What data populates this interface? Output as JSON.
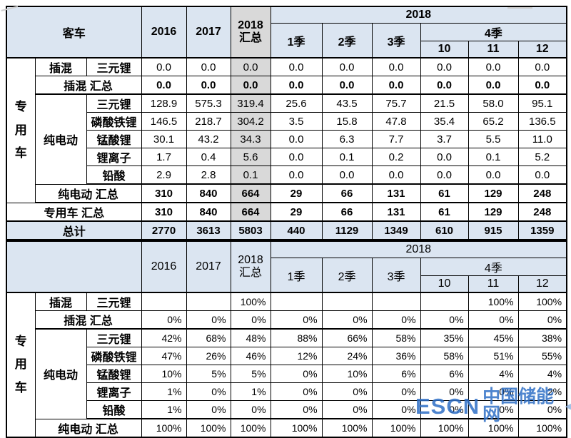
{
  "watermark": {
    "logo": "ESCN",
    "name": "中国储能网",
    "color": "#2e6fc6"
  },
  "colors": {
    "header_blue": "#dbe5f1",
    "summary_gray": "#d9d9d9",
    "total_row_blue": "#dbe5f1",
    "border": "#000000"
  },
  "chart_data": [
    {
      "type": "table",
      "name": "capacity",
      "header": {
        "corner": "客车",
        "y2016": "2016",
        "y2017": "2017",
        "y2018_total": "2018\n汇总",
        "y2018": "2018",
        "q1": "1季",
        "q2": "2季",
        "q3": "3季",
        "q4": "4季",
        "m10": "10",
        "m11": "11",
        "m12": "12"
      },
      "rows": [
        {
          "cls": "",
          "cells": [
            {
              "t": "专\n用\n车",
              "r": 8,
              "cls": "vlab"
            },
            {
              "t": "插混",
              "cls": "lab"
            },
            {
              "t": "三元锂",
              "cls": "lab"
            },
            {
              "t": "0.0"
            },
            {
              "t": "0.0"
            },
            {
              "t": "0.0",
              "cls": "g"
            },
            {
              "t": "0.0"
            },
            {
              "t": "0.0"
            },
            {
              "t": "0.0"
            },
            {
              "t": "0.0"
            },
            {
              "t": "0.0"
            },
            {
              "t": "0.0"
            }
          ]
        },
        {
          "cls": "b2",
          "cells": [
            {
              "t": "插混 汇总",
              "c": 2,
              "cls": "lab"
            },
            {
              "t": "0.0",
              "cls": "b"
            },
            {
              "t": "0.0",
              "cls": "b"
            },
            {
              "t": "0.0",
              "cls": "b g"
            },
            {
              "t": "0.0",
              "cls": "b"
            },
            {
              "t": "0.0",
              "cls": "b"
            },
            {
              "t": "0.0",
              "cls": "b"
            },
            {
              "t": "0.0",
              "cls": "b"
            },
            {
              "t": "0.0",
              "cls": "b"
            },
            {
              "t": "0.0",
              "cls": "b"
            }
          ]
        },
        {
          "cls": "",
          "cells": [
            {
              "t": "纯电动",
              "r": 5,
              "cls": "lab"
            },
            {
              "t": "三元锂",
              "cls": "lab"
            },
            {
              "t": "128.9"
            },
            {
              "t": "575.3"
            },
            {
              "t": "319.4",
              "cls": "g"
            },
            {
              "t": "25.6"
            },
            {
              "t": "43.5"
            },
            {
              "t": "75.7"
            },
            {
              "t": "21.5"
            },
            {
              "t": "58.0"
            },
            {
              "t": "95.1"
            }
          ]
        },
        {
          "cls": "",
          "cells": [
            {
              "t": "磷酸铁锂",
              "cls": "lab"
            },
            {
              "t": "146.5"
            },
            {
              "t": "218.7"
            },
            {
              "t": "304.2",
              "cls": "g"
            },
            {
              "t": "3.5"
            },
            {
              "t": "15.8"
            },
            {
              "t": "47.8"
            },
            {
              "t": "35.4"
            },
            {
              "t": "65.2"
            },
            {
              "t": "136.5"
            }
          ]
        },
        {
          "cls": "",
          "cells": [
            {
              "t": "锰酸锂",
              "cls": "lab"
            },
            {
              "t": "30.1"
            },
            {
              "t": "43.2"
            },
            {
              "t": "34.3",
              "cls": "g"
            },
            {
              "t": "0.0"
            },
            {
              "t": "6.3"
            },
            {
              "t": "7.7"
            },
            {
              "t": "3.7"
            },
            {
              "t": "5.5"
            },
            {
              "t": "11.0"
            }
          ]
        },
        {
          "cls": "",
          "cells": [
            {
              "t": "锂离子",
              "cls": "lab"
            },
            {
              "t": "1.7"
            },
            {
              "t": "0.4"
            },
            {
              "t": "5.6",
              "cls": "g"
            },
            {
              "t": "0.0"
            },
            {
              "t": "0.1"
            },
            {
              "t": "0.2"
            },
            {
              "t": "0.0"
            },
            {
              "t": "0.1"
            },
            {
              "t": "5.2"
            }
          ]
        },
        {
          "cls": "b2",
          "cells": [
            {
              "t": "铅酸",
              "cls": "lab"
            },
            {
              "t": "2.9"
            },
            {
              "t": "2.8"
            },
            {
              "t": "0.1",
              "cls": "g"
            },
            {
              "t": "0.0"
            },
            {
              "t": "0.0"
            },
            {
              "t": "0.0"
            },
            {
              "t": "0.0"
            },
            {
              "t": "0.0"
            },
            {
              "t": "0.0"
            }
          ]
        },
        {
          "cls": "b2",
          "cells": [
            {
              "t": "纯电动 汇总",
              "c": 2,
              "cls": "lab"
            },
            {
              "t": "310",
              "cls": "b"
            },
            {
              "t": "840",
              "cls": "b"
            },
            {
              "t": "664",
              "cls": "b g"
            },
            {
              "t": "29",
              "cls": "b"
            },
            {
              "t": "66",
              "cls": "b"
            },
            {
              "t": "131",
              "cls": "b"
            },
            {
              "t": "61",
              "cls": "b"
            },
            {
              "t": "129",
              "cls": "b"
            },
            {
              "t": "248",
              "cls": "b"
            }
          ]
        },
        {
          "cls": "b2",
          "cells": [
            {
              "t": "专用车 汇总",
              "c": 3,
              "cls": "lab"
            },
            {
              "t": "310",
              "cls": "b"
            },
            {
              "t": "840",
              "cls": "b"
            },
            {
              "t": "664",
              "cls": "b g"
            },
            {
              "t": "29",
              "cls": "b"
            },
            {
              "t": "66",
              "cls": "b"
            },
            {
              "t": "131",
              "cls": "b"
            },
            {
              "t": "61",
              "cls": "b"
            },
            {
              "t": "129",
              "cls": "b"
            },
            {
              "t": "248",
              "cls": "b"
            }
          ]
        },
        {
          "cls": "b2 blue",
          "cells": [
            {
              "t": "总计",
              "c": 3,
              "cls": "lab"
            },
            {
              "t": "2770",
              "cls": "b"
            },
            {
              "t": "3613",
              "cls": "b"
            },
            {
              "t": "5803",
              "cls": "b"
            },
            {
              "t": "440",
              "cls": "b"
            },
            {
              "t": "1129",
              "cls": "b"
            },
            {
              "t": "1349",
              "cls": "b"
            },
            {
              "t": "610",
              "cls": "b"
            },
            {
              "t": "915",
              "cls": "b"
            },
            {
              "t": "1359",
              "cls": "b"
            }
          ]
        }
      ]
    },
    {
      "type": "table",
      "name": "share",
      "header": {
        "corner": "",
        "y2016": "2016",
        "y2017": "2017",
        "y2018_total": "2018\n汇总",
        "y2018": "2018",
        "q1": "1季",
        "q2": "2季",
        "q3": "3季",
        "q4": "4季",
        "m10": "10",
        "m11": "11",
        "m12": "12"
      },
      "rows": [
        {
          "cls": "",
          "cells": [
            {
              "t": "专\n用\n车",
              "r": 8,
              "cls": "vlab"
            },
            {
              "t": "插混",
              "cls": "lab"
            },
            {
              "t": "三元锂",
              "cls": "lab"
            },
            {
              "t": "",
              "cls": "pct"
            },
            {
              "t": "",
              "cls": "pct"
            },
            {
              "t": "100%",
              "cls": "pct"
            },
            {
              "t": "",
              "cls": "pct"
            },
            {
              "t": "",
              "cls": "pct"
            },
            {
              "t": "",
              "cls": "pct"
            },
            {
              "t": "",
              "cls": "pct"
            },
            {
              "t": "100%",
              "cls": "pct"
            },
            {
              "t": "100%",
              "cls": "pct"
            }
          ]
        },
        {
          "cls": "b2",
          "cells": [
            {
              "t": "插混 汇总",
              "c": 2,
              "cls": "lab"
            },
            {
              "t": "0%",
              "cls": "pct"
            },
            {
              "t": "0%",
              "cls": "pct"
            },
            {
              "t": "0%",
              "cls": "pct"
            },
            {
              "t": "0%",
              "cls": "pct"
            },
            {
              "t": "0%",
              "cls": "pct"
            },
            {
              "t": "0%",
              "cls": "pct"
            },
            {
              "t": "0%",
              "cls": "pct"
            },
            {
              "t": "0%",
              "cls": "pct"
            },
            {
              "t": "0%",
              "cls": "pct"
            }
          ]
        },
        {
          "cls": "",
          "cells": [
            {
              "t": "纯电动",
              "r": 5,
              "cls": "lab"
            },
            {
              "t": "三元锂",
              "cls": "lab"
            },
            {
              "t": "42%",
              "cls": "pct"
            },
            {
              "t": "68%",
              "cls": "pct"
            },
            {
              "t": "48%",
              "cls": "pct"
            },
            {
              "t": "88%",
              "cls": "pct"
            },
            {
              "t": "66%",
              "cls": "pct"
            },
            {
              "t": "58%",
              "cls": "pct"
            },
            {
              "t": "35%",
              "cls": "pct"
            },
            {
              "t": "45%",
              "cls": "pct"
            },
            {
              "t": "38%",
              "cls": "pct"
            }
          ]
        },
        {
          "cls": "",
          "cells": [
            {
              "t": "磷酸铁锂",
              "cls": "lab"
            },
            {
              "t": "47%",
              "cls": "pct"
            },
            {
              "t": "26%",
              "cls": "pct"
            },
            {
              "t": "46%",
              "cls": "pct"
            },
            {
              "t": "12%",
              "cls": "pct"
            },
            {
              "t": "24%",
              "cls": "pct"
            },
            {
              "t": "36%",
              "cls": "pct"
            },
            {
              "t": "58%",
              "cls": "pct"
            },
            {
              "t": "51%",
              "cls": "pct"
            },
            {
              "t": "55%",
              "cls": "pct"
            }
          ]
        },
        {
          "cls": "",
          "cells": [
            {
              "t": "锰酸锂",
              "cls": "lab"
            },
            {
              "t": "10%",
              "cls": "pct"
            },
            {
              "t": "5%",
              "cls": "pct"
            },
            {
              "t": "5%",
              "cls": "pct"
            },
            {
              "t": "0%",
              "cls": "pct"
            },
            {
              "t": "10%",
              "cls": "pct"
            },
            {
              "t": "6%",
              "cls": "pct"
            },
            {
              "t": "6%",
              "cls": "pct"
            },
            {
              "t": "4%",
              "cls": "pct"
            },
            {
              "t": "4%",
              "cls": "pct"
            }
          ]
        },
        {
          "cls": "",
          "cells": [
            {
              "t": "锂离子",
              "cls": "lab"
            },
            {
              "t": "1%",
              "cls": "pct"
            },
            {
              "t": "0%",
              "cls": "pct"
            },
            {
              "t": "1%",
              "cls": "pct"
            },
            {
              "t": "0%",
              "cls": "pct"
            },
            {
              "t": "0%",
              "cls": "pct"
            },
            {
              "t": "0%",
              "cls": "pct"
            },
            {
              "t": "0%",
              "cls": "pct"
            },
            {
              "t": "0%",
              "cls": "pct"
            },
            {
              "t": "2%",
              "cls": "pct"
            }
          ]
        },
        {
          "cls": "b2",
          "cells": [
            {
              "t": "铅酸",
              "cls": "lab"
            },
            {
              "t": "1%",
              "cls": "pct"
            },
            {
              "t": "0%",
              "cls": "pct"
            },
            {
              "t": "0%",
              "cls": "pct"
            },
            {
              "t": "0%",
              "cls": "pct"
            },
            {
              "t": "0%",
              "cls": "pct"
            },
            {
              "t": "0%",
              "cls": "pct"
            },
            {
              "t": "0%",
              "cls": "pct"
            },
            {
              "t": "0%",
              "cls": "pct"
            },
            {
              "t": "0%",
              "cls": "pct"
            }
          ]
        },
        {
          "cls": "b2",
          "cells": [
            {
              "t": "纯电动 汇总",
              "c": 2,
              "cls": "lab"
            },
            {
              "t": "100%",
              "cls": "pct"
            },
            {
              "t": "100%",
              "cls": "pct"
            },
            {
              "t": "100%",
              "cls": "pct"
            },
            {
              "t": "100%",
              "cls": "pct"
            },
            {
              "t": "100%",
              "cls": "pct"
            },
            {
              "t": "100%",
              "cls": "pct"
            },
            {
              "t": "100%",
              "cls": "pct"
            },
            {
              "t": "100%",
              "cls": "pct"
            },
            {
              "t": "100%",
              "cls": "pct"
            }
          ]
        }
      ]
    }
  ]
}
